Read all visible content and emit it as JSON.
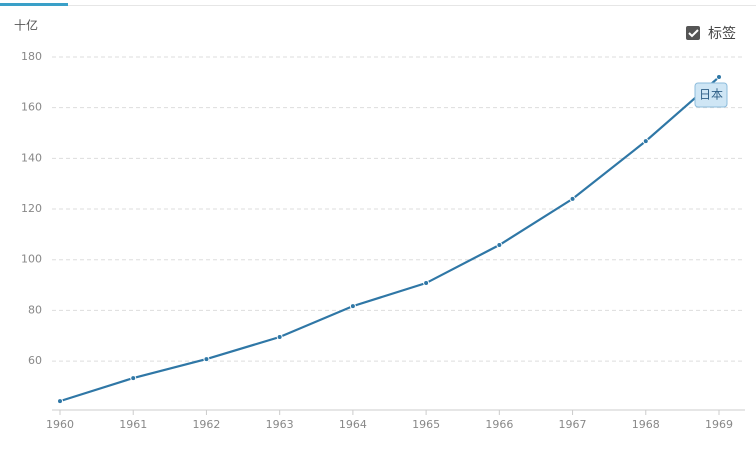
{
  "chart_data": {
    "type": "line",
    "unit_label": "十亿",
    "toggle_label": "标签",
    "x": [
      1960,
      1961,
      1962,
      1963,
      1964,
      1965,
      1966,
      1967,
      1968,
      1969
    ],
    "series": [
      {
        "name": "日本",
        "color": "#2f77a6",
        "values": [
          44.2,
          53.3,
          60.8,
          69.5,
          81.7,
          90.8,
          105.8,
          124,
          146.8,
          172.1
        ]
      }
    ],
    "xlim": [
      1960,
      1969
    ],
    "xticks": [
      1960,
      1961,
      1962,
      1963,
      1964,
      1965,
      1966,
      1967,
      1968,
      1969
    ],
    "ylim": [
      40.7,
      180
    ],
    "yticks": [
      60,
      80,
      100,
      120,
      140,
      160,
      180
    ],
    "grid": true
  }
}
